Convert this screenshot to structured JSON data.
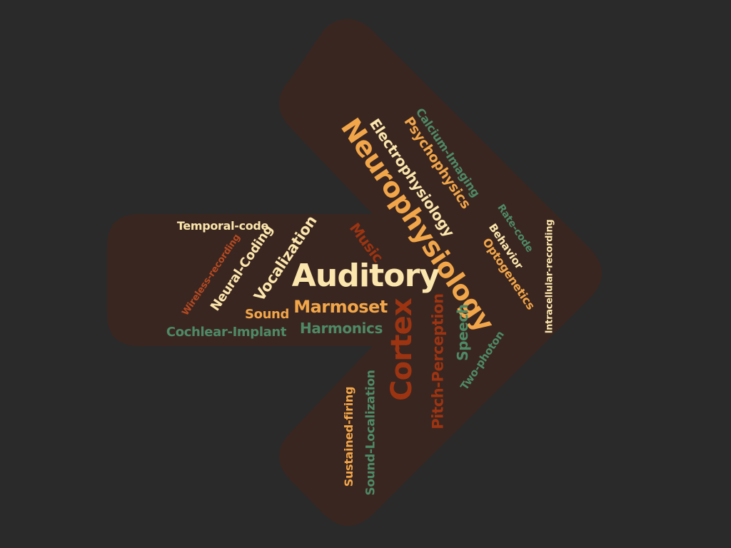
{
  "colors": {
    "background": "#2a2a2a",
    "arrow": "#3a2620",
    "cream": "#fbe6ad",
    "orange": "#f2a64a",
    "green": "#4e8a66",
    "rust": "#9c3412",
    "burnt": "#b54a22"
  },
  "words": [
    {
      "text": "Neurophysiology",
      "color": "orange"
    },
    {
      "text": "Auditory",
      "color": "cream"
    },
    {
      "text": "Cortex",
      "color": "rust"
    },
    {
      "text": "Electrophysiology",
      "color": "cream"
    },
    {
      "text": "Psychophysics",
      "color": "orange"
    },
    {
      "text": "Calcium-Imaging",
      "color": "green"
    },
    {
      "text": "Rate-code",
      "color": "green"
    },
    {
      "text": "Behavior",
      "color": "cream"
    },
    {
      "text": "Optogenetics",
      "color": "orange"
    },
    {
      "text": "Intracellular-recording",
      "color": "cream"
    },
    {
      "text": "Music",
      "color": "rust"
    },
    {
      "text": "Vocalization",
      "color": "cream"
    },
    {
      "text": "Neural-Coding",
      "color": "cream"
    },
    {
      "text": "Temporal-code",
      "color": "cream"
    },
    {
      "text": "Wireless-recording",
      "color": "burnt"
    },
    {
      "text": "Marmoset",
      "color": "orange"
    },
    {
      "text": "Sound",
      "color": "orange"
    },
    {
      "text": "Cochlear-Implant",
      "color": "green"
    },
    {
      "text": "Harmonics",
      "color": "green"
    },
    {
      "text": "Pitch-Perception",
      "color": "rust"
    },
    {
      "text": "Speech",
      "color": "green"
    },
    {
      "text": "Two-photon",
      "color": "green"
    },
    {
      "text": "Sustained-firing",
      "color": "orange"
    },
    {
      "text": "Sound-Localization",
      "color": "green"
    }
  ]
}
